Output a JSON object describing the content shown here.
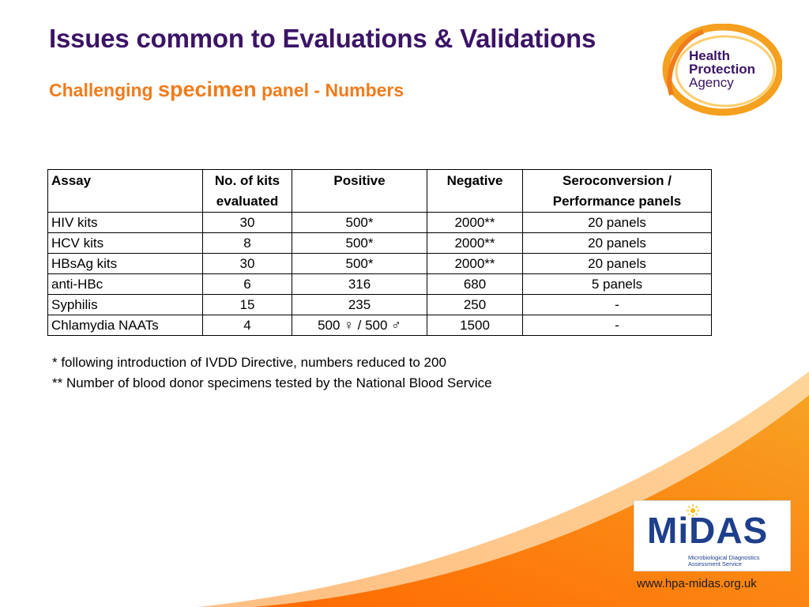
{
  "slide": {
    "title": "Issues common to Evaluations & Validations",
    "subtitle_part1": "Challenging ",
    "subtitle_part2": "specimen",
    "subtitle_part3": " panel - Numbers"
  },
  "hpa_logo": {
    "line1": "Health",
    "line2": "Protection",
    "line3": "Agency",
    "color_primary": "#3b1466",
    "color_ring": "#f5a01e"
  },
  "table": {
    "headers": {
      "assay": "Assay",
      "kits_line1": "No. of kits",
      "kits_line2": "evaluated",
      "positive": "Positive",
      "negative": "Negative",
      "sero_line1": "Seroconversion /",
      "sero_line2": "Performance panels"
    },
    "rows": [
      {
        "assay": "HIV kits",
        "kits": "30",
        "positive": "500*",
        "negative": "2000**",
        "panels": "20 panels"
      },
      {
        "assay": "HCV kits",
        "kits": "8",
        "positive": "500*",
        "negative": "2000**",
        "panels": "20 panels"
      },
      {
        "assay": "HBsAg kits",
        "kits": "30",
        "positive": "500*",
        "negative": "2000**",
        "panels": "20 panels"
      },
      {
        "assay": "anti-HBc",
        "kits": "6",
        "positive": "316",
        "negative": "680",
        "panels": "5 panels"
      },
      {
        "assay": "Syphilis",
        "kits": "15",
        "positive": "235",
        "negative": "250",
        "panels": "-"
      },
      {
        "assay": "Chlamydia NAATs",
        "kits": "4",
        "positive": "500 ♀ / 500 ♂",
        "negative": "1500",
        "panels": "-"
      }
    ]
  },
  "notes": {
    "note1": "* following introduction of IVDD Directive, numbers reduced to 200",
    "note2": "** Number of blood donor specimens tested by the National Blood Service"
  },
  "midas_logo": {
    "word": "MiDAS",
    "sub_line1": "Microbiological Diagnostics",
    "sub_line2": "Assessment Service",
    "color": "#1d3f8c"
  },
  "footer": {
    "url": "www.hpa-midas.org.uk"
  },
  "colors": {
    "title": "#3b1466",
    "subtitle": "#f07c1c",
    "accent_orange": "#f7941d"
  }
}
